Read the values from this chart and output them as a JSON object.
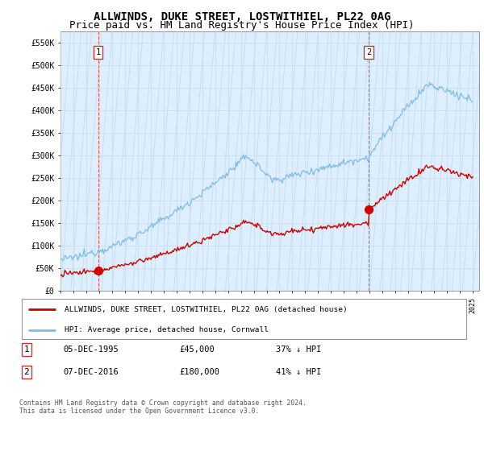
{
  "title": "ALLWINDS, DUKE STREET, LOSTWITHIEL, PL22 0AG",
  "subtitle": "Price paid vs. HM Land Registry's House Price Index (HPI)",
  "ylabel_ticks": [
    "£0",
    "£50K",
    "£100K",
    "£150K",
    "£200K",
    "£250K",
    "£300K",
    "£350K",
    "£400K",
    "£450K",
    "£500K",
    "£550K"
  ],
  "ytick_values": [
    0,
    50000,
    100000,
    150000,
    200000,
    250000,
    300000,
    350000,
    400000,
    450000,
    500000,
    550000
  ],
  "ylim": [
    0,
    575000
  ],
  "xlim_start": 1993.0,
  "xlim_end": 2025.5,
  "xtick_years": [
    1993,
    1994,
    1995,
    1996,
    1997,
    1998,
    1999,
    2000,
    2001,
    2002,
    2003,
    2004,
    2005,
    2006,
    2007,
    2008,
    2009,
    2010,
    2011,
    2012,
    2013,
    2014,
    2015,
    2016,
    2017,
    2018,
    2019,
    2020,
    2021,
    2022,
    2023,
    2024,
    2025
  ],
  "sale1_x": 1995.92,
  "sale1_y": 45000,
  "sale2_x": 2016.92,
  "sale2_y": 180000,
  "hpi_color": "#7dbde8",
  "sale_color": "#cc0000",
  "grid_color": "#c8d8e8",
  "bg_color": "#ddeeff",
  "hatch_color": "#b8cce0",
  "legend_label_red": "ALLWINDS, DUKE STREET, LOSTWITHIEL, PL22 0AG (detached house)",
  "legend_label_blue": "HPI: Average price, detached house, Cornwall",
  "sale1_date": "05-DEC-1995",
  "sale1_price": "£45,000",
  "sale1_hpi": "37% ↓ HPI",
  "sale2_date": "07-DEC-2016",
  "sale2_price": "£180,000",
  "sale2_hpi": "41% ↓ HPI",
  "footer": "Contains HM Land Registry data © Crown copyright and database right 2024.\nThis data is licensed under the Open Government Licence v3.0.",
  "title_fontsize": 10,
  "subtitle_fontsize": 9
}
